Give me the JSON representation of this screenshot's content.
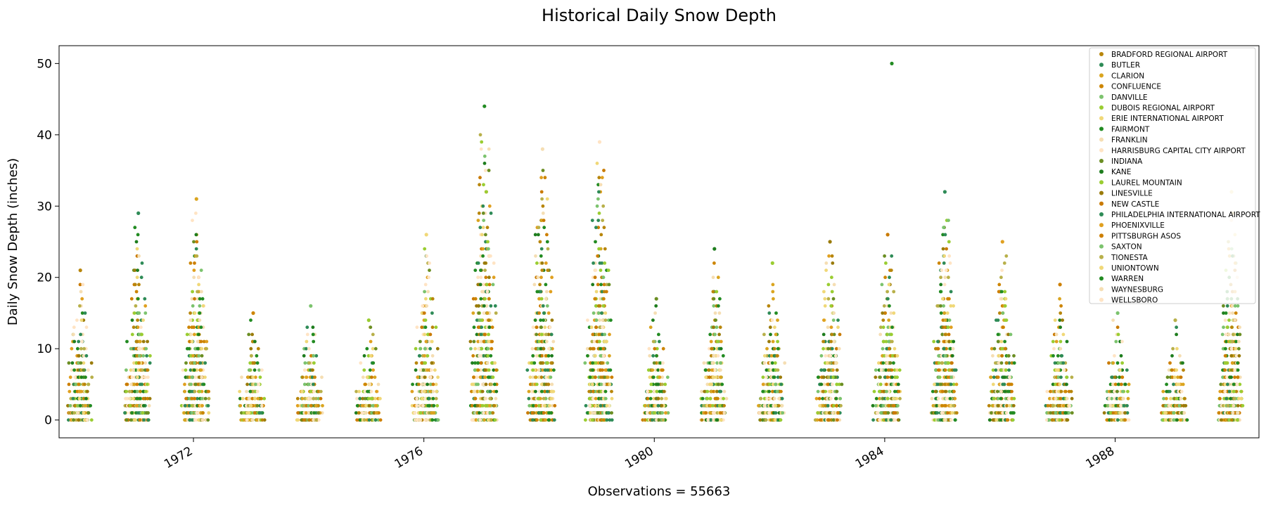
{
  "chart_data": {
    "type": "scatter",
    "title": "Historical Daily Snow Depth",
    "ylabel": "Daily Snow Depth (inches)",
    "xlabel": "Observations = 55663",
    "ylim": [
      -2.5,
      52.5
    ],
    "xlim": [
      "1969-09-01",
      "1990-07-01"
    ],
    "yticks": [
      0,
      10,
      20,
      30,
      40,
      50
    ],
    "xticks": [
      {
        "date": "1972-01-01",
        "label": "1972"
      },
      {
        "date": "1976-01-01",
        "label": "1976"
      },
      {
        "date": "1980-01-01",
        "label": "1980"
      },
      {
        "date": "1984-01-01",
        "label": "1984"
      },
      {
        "date": "1988-01-01",
        "label": "1988"
      }
    ],
    "grid": false,
    "legend_position": "top-right",
    "winter_seasons": [
      {
        "start": "1969-11-01",
        "end": "1970-03-15",
        "max": 21
      },
      {
        "start": "1970-11-01",
        "end": "1971-03-20",
        "max": 29
      },
      {
        "start": "1971-11-01",
        "end": "1972-03-25",
        "max": 31
      },
      {
        "start": "1972-11-01",
        "end": "1973-03-15",
        "max": 15
      },
      {
        "start": "1973-11-01",
        "end": "1974-03-15",
        "max": 16
      },
      {
        "start": "1974-11-01",
        "end": "1975-03-20",
        "max": 14
      },
      {
        "start": "1975-11-01",
        "end": "1976-03-20",
        "max": 26
      },
      {
        "start": "1976-11-01",
        "end": "1977-03-25",
        "max": 44
      },
      {
        "start": "1977-11-01",
        "end": "1978-03-31",
        "max": 38
      },
      {
        "start": "1978-11-01",
        "end": "1979-03-25",
        "max": 39
      },
      {
        "start": "1979-11-01",
        "end": "1980-03-15",
        "max": 17
      },
      {
        "start": "1980-11-01",
        "end": "1981-03-20",
        "max": 24
      },
      {
        "start": "1981-11-01",
        "end": "1982-03-25",
        "max": 22
      },
      {
        "start": "1982-11-01",
        "end": "1983-03-25",
        "max": 25
      },
      {
        "start": "1983-11-01",
        "end": "1984-03-25",
        "max": 26
      },
      {
        "start": "1984-11-01",
        "end": "1985-03-20",
        "max": 32
      },
      {
        "start": "1985-11-01",
        "end": "1986-03-20",
        "max": 25
      },
      {
        "start": "1986-11-01",
        "end": "1987-03-20",
        "max": 19
      },
      {
        "start": "1987-11-01",
        "end": "1988-03-20",
        "max": 15
      },
      {
        "start": "1988-11-01",
        "end": "1989-03-20",
        "max": 14
      },
      {
        "start": "1989-11-01",
        "end": "1990-03-05",
        "max": 32
      }
    ],
    "outliers": [
      {
        "date": "1984-02-15",
        "y": 50,
        "series": "FAIRMONT"
      }
    ],
    "series": [
      {
        "name": "BRADFORD REGIONAL AIRPORT",
        "color": "#b8860b"
      },
      {
        "name": "BUTLER",
        "color": "#2e8b57"
      },
      {
        "name": "CLARION",
        "color": "#daa520"
      },
      {
        "name": "CONFLUENCE",
        "color": "#cd8500"
      },
      {
        "name": "DANVILLE",
        "color": "#7cc36e"
      },
      {
        "name": "DUBOIS REGIONAL AIRPORT",
        "color": "#9acd32"
      },
      {
        "name": "ERIE INTERNATIONAL AIRPORT",
        "color": "#f0d878"
      },
      {
        "name": "FAIRMONT",
        "color": "#228b22"
      },
      {
        "name": "FRANKLIN",
        "color": "#f5deb3"
      },
      {
        "name": "HARRISBURG CAPITAL CITY AIRPORT",
        "color": "#ffe4c4"
      },
      {
        "name": "INDIANA",
        "color": "#6b8e23"
      },
      {
        "name": "KANE",
        "color": "#1e7d1e"
      },
      {
        "name": "LAUREL MOUNTAIN",
        "color": "#9acd32"
      },
      {
        "name": "LINESVILLE",
        "color": "#9a7b0a"
      },
      {
        "name": "NEW CASTLE",
        "color": "#c97a00"
      },
      {
        "name": "PHILADELPHIA INTERNATIONAL AIRPORT",
        "color": "#2e8b57"
      },
      {
        "name": "PHOENIXVILLE",
        "color": "#e0a020"
      },
      {
        "name": "PITTSBURGH ASOS",
        "color": "#cd7f00"
      },
      {
        "name": "SAXTON",
        "color": "#7cc36e"
      },
      {
        "name": "TIONESTA",
        "color": "#b8b04a"
      },
      {
        "name": "UNIONTOWN",
        "color": "#f0d878"
      },
      {
        "name": "WARREN",
        "color": "#228b22"
      },
      {
        "name": "WAYNESBURG",
        "color": "#f5deb3"
      },
      {
        "name": "WELLSBORO",
        "color": "#ffe4c4"
      }
    ]
  }
}
